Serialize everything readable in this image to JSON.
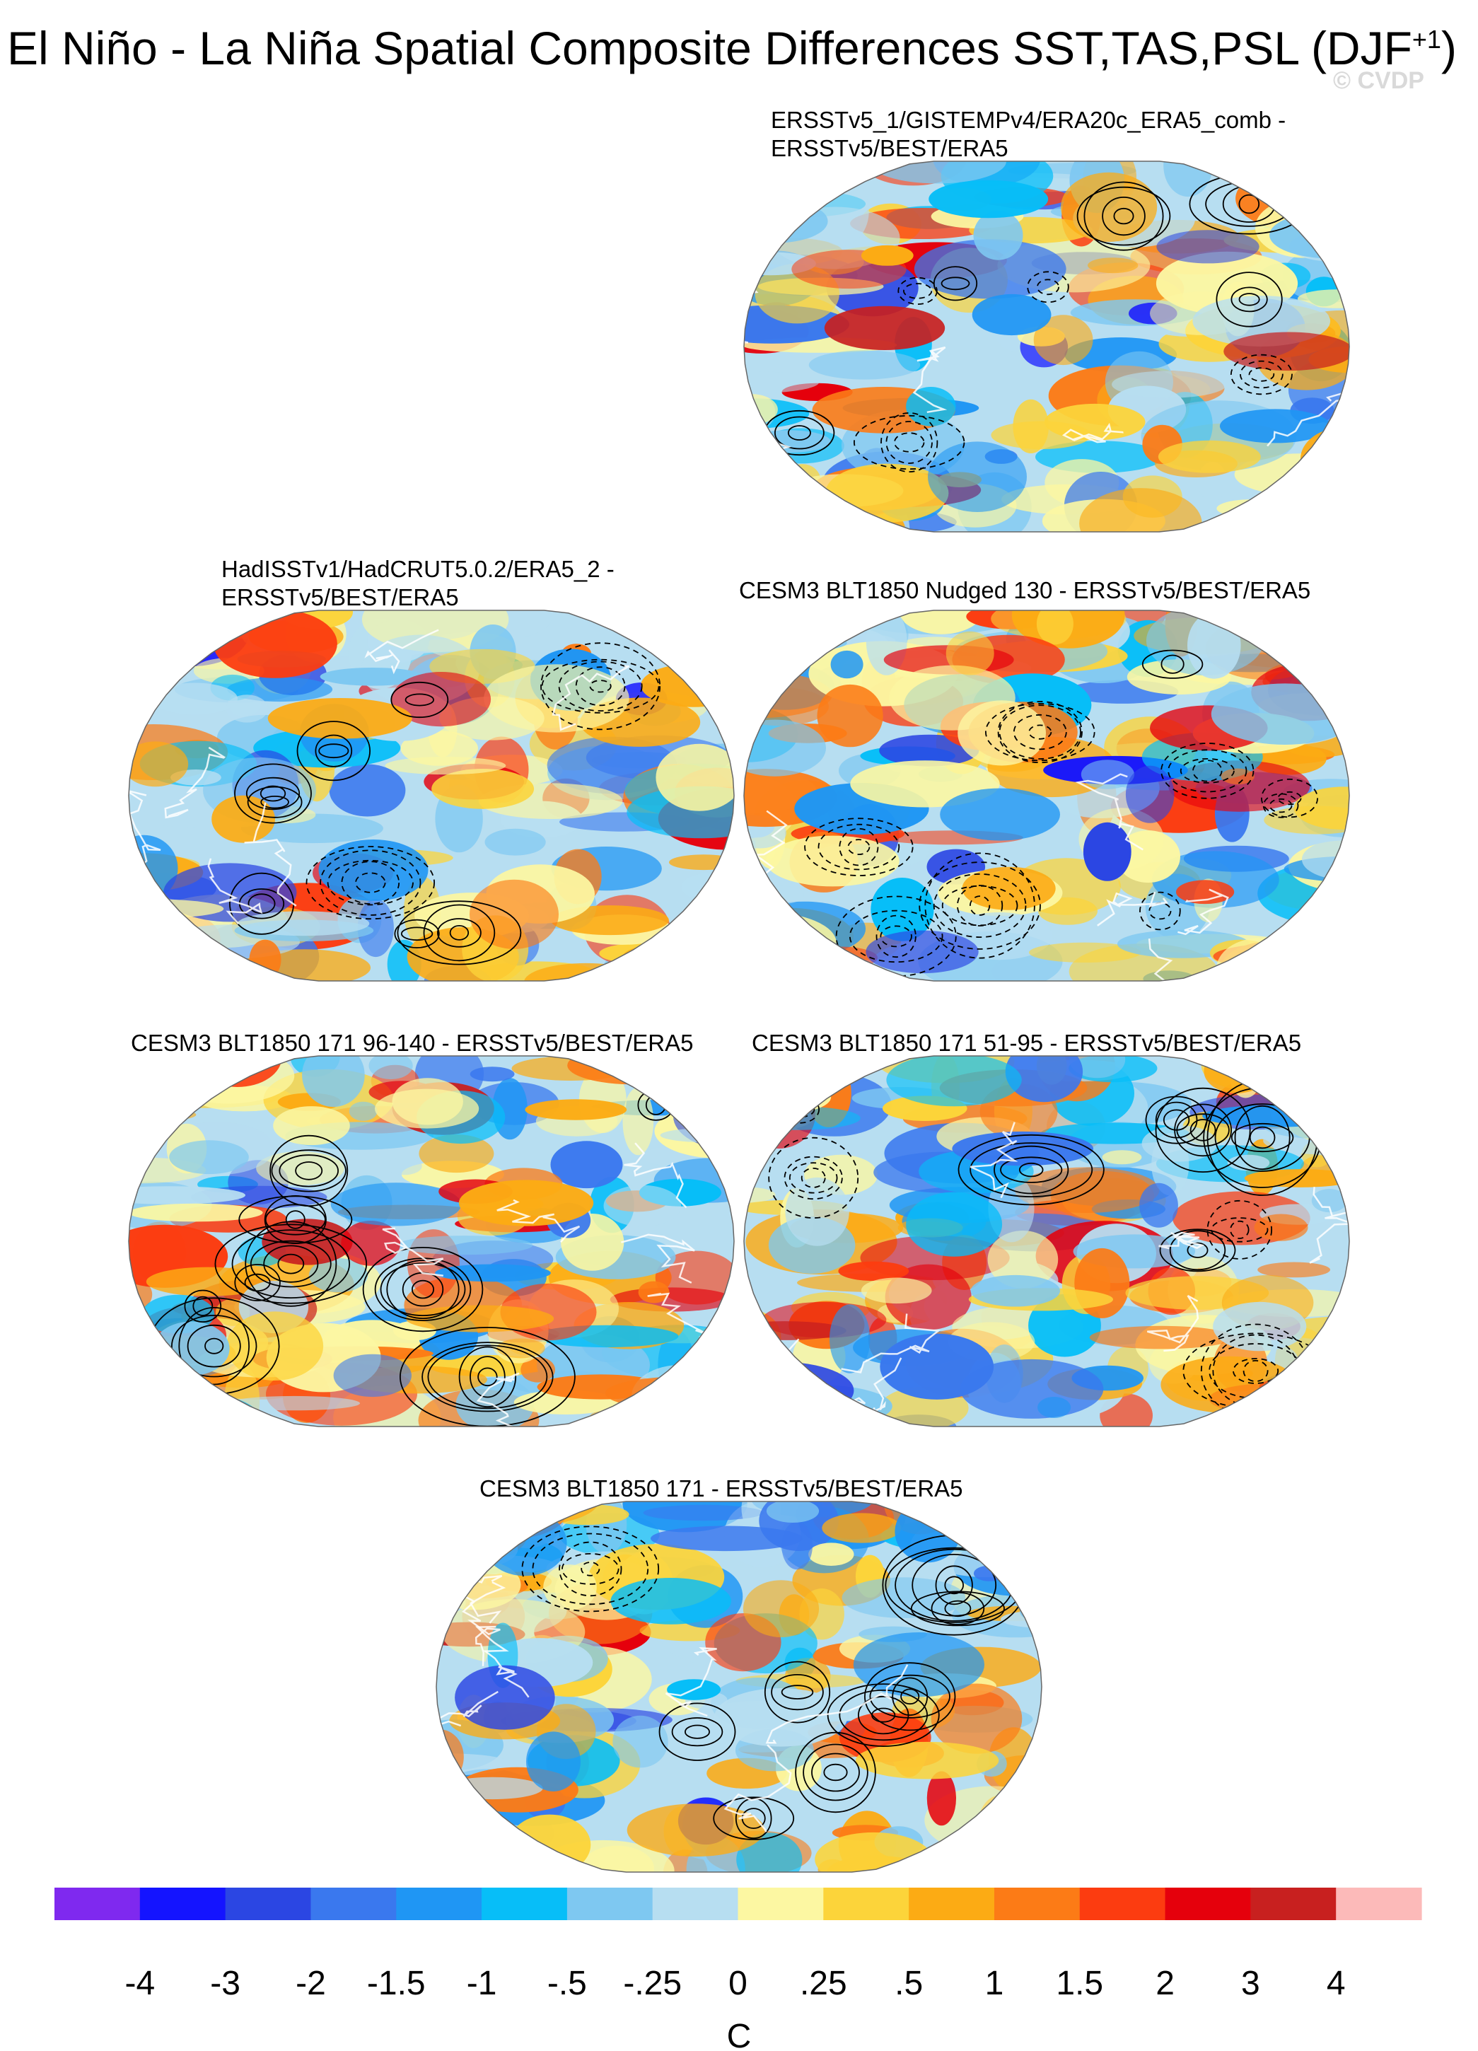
{
  "title": {
    "main": "El Niño - La Niña Spatial Composite Differences SST,TAS,PSL (DJF",
    "sup": "+1",
    "close": ")"
  },
  "watermark": "© CVDP",
  "panels": [
    {
      "id": "p1",
      "lines": [
        "ERSSTv5_1/GISTEMPv4/ERA20c_ERA5_comb -",
        "ERSSTv5/BEST/ERA5"
      ]
    },
    {
      "id": "p2",
      "lines": [
        "HadISSTv1/HadCRUT5.0.2/ERA5_2 -",
        "ERSSTv5/BEST/ERA5"
      ]
    },
    {
      "id": "p3",
      "lines": [
        "CESM3 BLT1850 Nudged 130 - ERSSTv5/BEST/ERA5"
      ]
    },
    {
      "id": "p4",
      "lines": [
        "CESM3 BLT1850 171 96-140 - ERSSTv5/BEST/ERA5"
      ]
    },
    {
      "id": "p5",
      "lines": [
        "CESM3 BLT1850 171 51-95 - ERSSTv5/BEST/ERA5"
      ]
    },
    {
      "id": "p6",
      "lines": [
        "CESM3 BLT1850 171 - ERSSTv5/BEST/ERA5"
      ]
    }
  ],
  "chart_data": {
    "type": "heatmap",
    "projection": "Robinson",
    "colorbar": {
      "unit": "C",
      "labels": [
        "-4",
        "-3",
        "-2",
        "-1.5",
        "-1",
        "-.5",
        "-.25",
        "0",
        ".25",
        ".5",
        "1",
        "1.5",
        "2",
        "3",
        "4"
      ],
      "colors": [
        "#7f29ef",
        "#1414ff",
        "#2b46e3",
        "#3a78ee",
        "#1f96f4",
        "#07bef8",
        "#7ec8f1",
        "#b7def1",
        "#fcf7a2",
        "#fcd43a",
        "#fcab14",
        "#fc7b16",
        "#fc3c10",
        "#e5000c",
        "#c8201f",
        "#fcbab9"
      ]
    }
  }
}
